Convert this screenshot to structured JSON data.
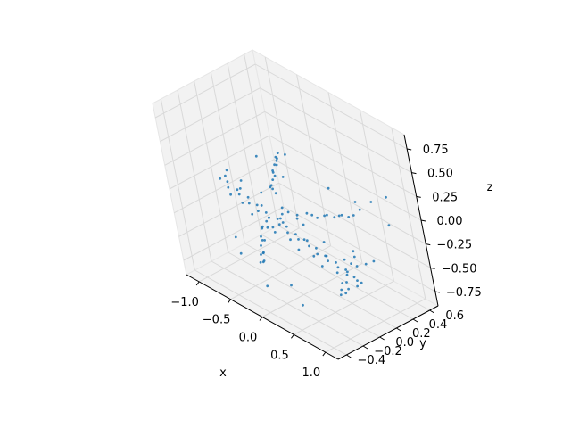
{
  "chart_data": {
    "type": "scatter",
    "projection": "3d",
    "title": "",
    "xlabel": "x",
    "ylabel": "y",
    "zlabel": "z",
    "grid": true,
    "legend": "none",
    "color": "#1f77b4",
    "pane_color": "#f2f2f2",
    "grid_color": "#d9d9d9",
    "xlim": [
      -1.2,
      1.2
    ],
    "ylim": [
      -0.5,
      0.7
    ],
    "zlim": [
      -0.9,
      0.9
    ],
    "xticks": [
      "−1.0",
      "−0.5",
      "0.0",
      "0.5",
      "1.0"
    ],
    "xtick_values": [
      -1.0,
      -0.5,
      0.0,
      0.5,
      1.0
    ],
    "yticks": [
      "−0.4",
      "−0.2",
      "0.0",
      "0.2",
      "0.4",
      "0.6"
    ],
    "ytick_values": [
      -0.4,
      -0.2,
      0.0,
      0.2,
      0.4,
      0.6
    ],
    "zticks": [
      "0.75",
      "0.50",
      "0.25",
      "0.00",
      "−0.25",
      "−0.50",
      "−0.75"
    ],
    "ztick_values": [
      0.75,
      0.5,
      0.25,
      0.0,
      -0.25,
      -0.5,
      -0.75
    ],
    "series": [
      {
        "shape": "airplane point cloud",
        "points": [
          [
            -1.05,
            -0.02,
            -0.06
          ],
          [
            -0.98,
            0.01,
            -0.08
          ],
          [
            -0.92,
            -0.03,
            -0.1
          ],
          [
            -0.85,
            0.02,
            -0.12
          ],
          [
            -0.78,
            -0.01,
            -0.13
          ],
          [
            -0.7,
            0.03,
            -0.15
          ],
          [
            -0.62,
            -0.02,
            -0.16
          ],
          [
            -0.55,
            0.02,
            -0.17
          ],
          [
            -0.47,
            -0.03,
            -0.18
          ],
          [
            -0.4,
            0.01,
            -0.19
          ],
          [
            -0.32,
            -0.02,
            -0.2
          ],
          [
            -0.25,
            0.03,
            -0.21
          ],
          [
            -0.17,
            -0.01,
            -0.22
          ],
          [
            -0.1,
            0.02,
            -0.23
          ],
          [
            -0.02,
            -0.03,
            -0.24
          ],
          [
            0.05,
            0.01,
            -0.25
          ],
          [
            0.13,
            -0.02,
            -0.26
          ],
          [
            0.2,
            0.03,
            -0.27
          ],
          [
            0.28,
            -0.01,
            -0.28
          ],
          [
            0.35,
            0.02,
            -0.29
          ],
          [
            0.43,
            -0.03,
            -0.3
          ],
          [
            0.5,
            0.01,
            -0.31
          ],
          [
            0.58,
            -0.02,
            -0.32
          ],
          [
            0.65,
            0.02,
            -0.33
          ],
          [
            0.72,
            -0.01,
            -0.34
          ],
          [
            0.8,
            0.02,
            -0.35
          ],
          [
            0.87,
            -0.02,
            -0.36
          ],
          [
            0.94,
            0.01,
            -0.37
          ],
          [
            1.0,
            0.0,
            -0.38
          ],
          [
            1.05,
            0.01,
            -0.39
          ],
          [
            -1.0,
            0.04,
            0.02
          ],
          [
            -0.9,
            -0.05,
            0.04
          ],
          [
            -0.8,
            0.05,
            -0.02
          ],
          [
            -0.66,
            -0.06,
            0.0
          ],
          [
            -0.5,
            0.06,
            -0.04
          ],
          [
            -0.34,
            -0.06,
            -0.06
          ],
          [
            -0.18,
            0.06,
            -0.08
          ],
          [
            -0.02,
            -0.06,
            -0.12
          ],
          [
            0.14,
            0.06,
            -0.14
          ],
          [
            0.3,
            -0.06,
            -0.18
          ],
          [
            0.46,
            0.05,
            -0.2
          ],
          [
            0.62,
            -0.05,
            -0.24
          ],
          [
            0.78,
            0.04,
            -0.26
          ],
          [
            0.92,
            -0.04,
            -0.3
          ],
          [
            -0.95,
            0.0,
            -0.2
          ],
          [
            -0.8,
            0.02,
            -0.24
          ],
          [
            -0.62,
            -0.01,
            -0.28
          ],
          [
            -0.44,
            0.02,
            -0.3
          ],
          [
            -0.26,
            -0.02,
            -0.33
          ],
          [
            -0.08,
            0.02,
            -0.36
          ],
          [
            0.1,
            -0.02,
            -0.38
          ],
          [
            0.28,
            0.02,
            -0.4
          ],
          [
            0.46,
            -0.02,
            -0.42
          ],
          [
            0.64,
            0.02,
            -0.44
          ],
          [
            0.82,
            -0.01,
            -0.46
          ],
          [
            -0.3,
            0.12,
            -0.22
          ],
          [
            -0.2,
            0.22,
            -0.24
          ],
          [
            -0.1,
            0.32,
            -0.25
          ],
          [
            0.0,
            0.42,
            -0.26
          ],
          [
            0.1,
            0.52,
            -0.27
          ],
          [
            0.18,
            0.6,
            -0.28
          ],
          [
            -0.25,
            0.16,
            -0.2
          ],
          [
            -0.12,
            0.28,
            -0.22
          ],
          [
            0.02,
            0.38,
            -0.24
          ],
          [
            0.12,
            0.48,
            -0.25
          ],
          [
            -0.18,
            0.2,
            -0.26
          ],
          [
            -0.05,
            0.34,
            -0.27
          ],
          [
            0.06,
            0.46,
            -0.28
          ],
          [
            0.15,
            0.56,
            -0.29
          ],
          [
            -0.28,
            0.08,
            -0.24
          ],
          [
            -0.3,
            -0.12,
            -0.24
          ],
          [
            -0.2,
            -0.22,
            -0.26
          ],
          [
            -0.1,
            -0.3,
            -0.28
          ],
          [
            0.0,
            -0.38,
            -0.3
          ],
          [
            0.08,
            -0.45,
            -0.32
          ],
          [
            -0.25,
            -0.16,
            -0.22
          ],
          [
            -0.12,
            -0.26,
            -0.25
          ],
          [
            0.02,
            -0.36,
            -0.28
          ],
          [
            0.1,
            -0.42,
            -0.31
          ],
          [
            -0.18,
            -0.2,
            -0.3
          ],
          [
            -0.05,
            -0.32,
            -0.33
          ],
          [
            0.05,
            -0.4,
            -0.35
          ],
          [
            -0.28,
            -0.08,
            -0.26
          ],
          [
            -0.15,
            -0.1,
            -0.2
          ],
          [
            -0.35,
            0.0,
            -0.22
          ],
          [
            -0.25,
            0.04,
            0.1
          ],
          [
            -0.2,
            0.03,
            0.22
          ],
          [
            -0.15,
            0.02,
            0.32
          ],
          [
            -0.1,
            0.02,
            0.42
          ],
          [
            -0.05,
            0.03,
            0.5
          ],
          [
            0.0,
            0.02,
            0.58
          ],
          [
            -0.22,
            0.0,
            0.15
          ],
          [
            -0.18,
            0.05,
            0.26
          ],
          [
            -0.12,
            0.0,
            0.36
          ],
          [
            -0.08,
            0.04,
            0.46
          ],
          [
            -0.02,
            0.0,
            0.54
          ],
          [
            -0.24,
            0.06,
            0.05
          ],
          [
            -0.16,
            -0.02,
            0.2
          ],
          [
            -0.11,
            0.05,
            0.4
          ],
          [
            -0.04,
            0.05,
            0.3
          ],
          [
            0.88,
            0.1,
            -0.32
          ],
          [
            0.95,
            0.16,
            -0.3
          ],
          [
            1.0,
            0.22,
            -0.28
          ],
          [
            0.92,
            -0.12,
            -0.38
          ],
          [
            0.98,
            -0.18,
            -0.4
          ],
          [
            1.02,
            -0.22,
            -0.42
          ],
          [
            0.95,
            0.0,
            -0.22
          ],
          [
            1.0,
            0.02,
            -0.14
          ],
          [
            1.03,
            0.0,
            -0.06
          ],
          [
            0.9,
            0.05,
            -0.5
          ],
          [
            0.85,
            -0.06,
            -0.54
          ],
          [
            0.78,
            0.02,
            -0.56
          ],
          [
            -0.6,
            -0.25,
            -0.4
          ],
          [
            -0.4,
            -0.35,
            -0.45
          ],
          [
            0.2,
            -0.5,
            -0.5
          ],
          [
            0.5,
            0.45,
            0.05
          ],
          [
            0.7,
            0.5,
            0.1
          ],
          [
            0.8,
            0.3,
            0.15
          ],
          [
            -0.85,
            0.3,
            0.1
          ],
          [
            0.3,
            -0.3,
            -0.55
          ],
          [
            0.6,
            -0.4,
            -0.6
          ],
          [
            -0.5,
            0.4,
            0.2
          ],
          [
            0.9,
            0.55,
            0.2
          ],
          [
            1.1,
            0.4,
            0.05
          ],
          [
            0.4,
            0.25,
            0.25
          ]
        ]
      }
    ]
  }
}
